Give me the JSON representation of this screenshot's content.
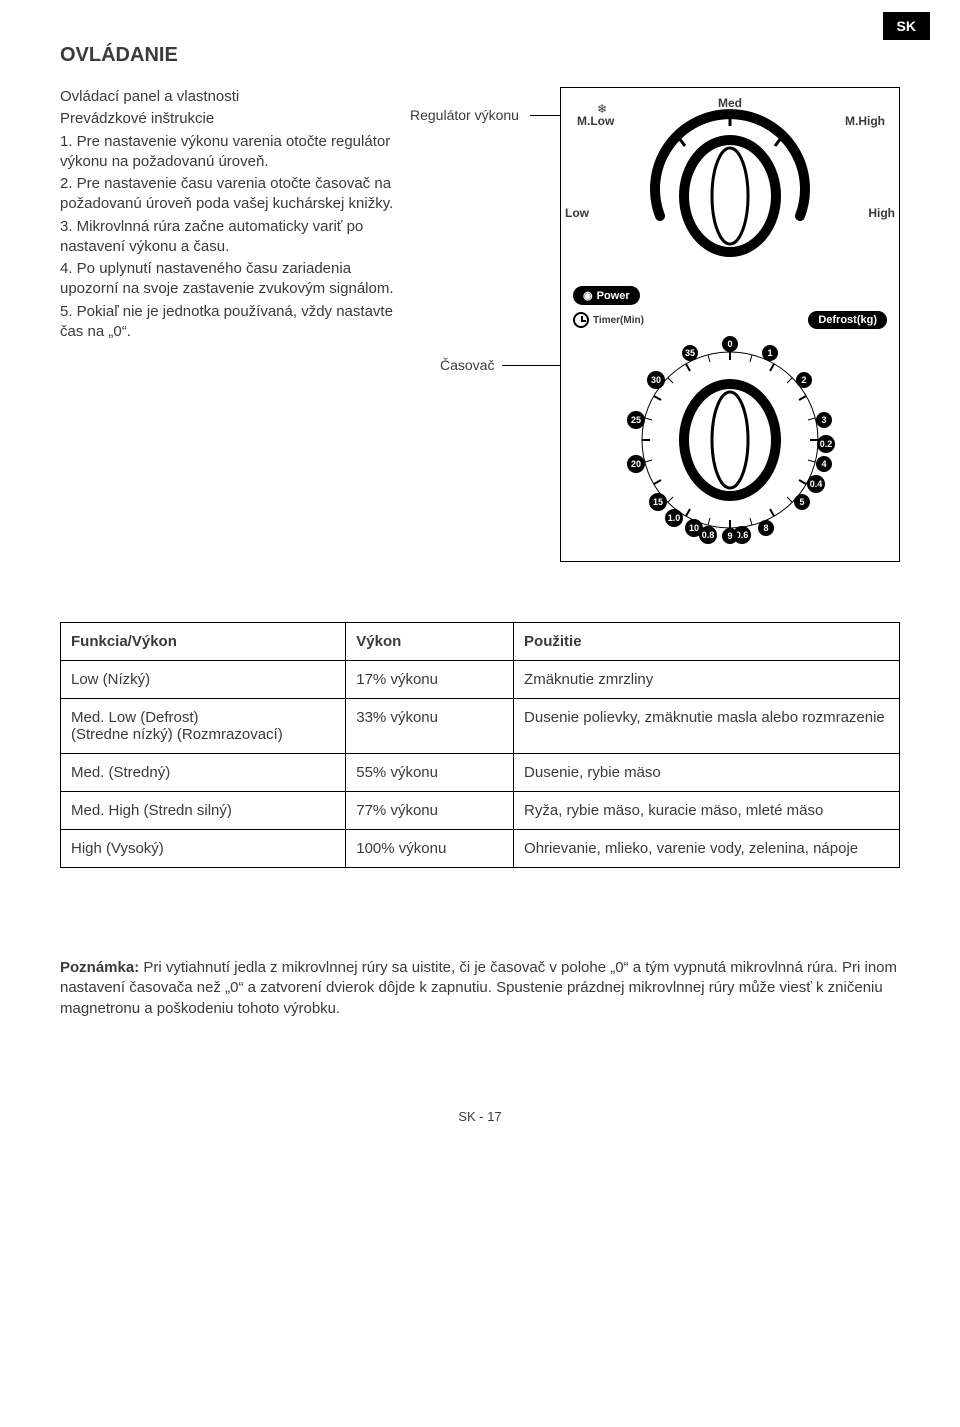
{
  "lang_tab": "SK",
  "title": "OVLÁDANIE",
  "subheading": "Ovládací panel a vlastnosti",
  "instr_heading": "Prevádzkové inštrukcie",
  "instructions": [
    "1. Pre nastavenie výkonu varenia otočte regulátor výkonu na požadovanú úroveň.",
    "2. Pre nastavenie času varenia otočte časovač na požadovanú úroveň poda vašej kuchárskej knižky.",
    "3. Mikrovlnná rúra začne automaticky variť po nastavení výkonu a času.",
    "4. Po uplynutí nastaveného času zariadenia upozorní na svoje zastavenie zvukovým signálom.",
    "5. Pokiaľ nie je jednotka používaná, vždy nastavte čas na „0“."
  ],
  "callout_power": "Regulátor výkonu",
  "callout_timer": "Časovač",
  "power_dial": {
    "labels": {
      "top": "Med",
      "topleft": "M.Low",
      "topright": "M.High",
      "left": "Low",
      "right": "High"
    }
  },
  "mid_row": {
    "power_pill": "Power",
    "defrost_pill": "Defrost(kg)",
    "timer_label": "Timer(Min)"
  },
  "timer_dial": {
    "outer": [
      "0",
      "1",
      "2",
      "3",
      "4",
      "5",
      "35",
      "30",
      "25",
      "20",
      "15",
      "10"
    ],
    "inner_bottom": [
      "1.0",
      "0.8",
      "0.6",
      "0.4",
      "0.2"
    ],
    "inner_top_alt": [
      "9",
      "8"
    ]
  },
  "table": {
    "headers": [
      "Funkcia/Výkon",
      "Výkon",
      "Použitie"
    ],
    "rows": [
      [
        "Low (Nízký)",
        "17% výkonu",
        "Zmäknutie zmrzliny"
      ],
      [
        "Med. Low (Defrost)\n(Stredne nízký) (Rozmrazovací)",
        "33% výkonu",
        "Dusenie polievky, zmäknutie masla alebo rozmrazenie"
      ],
      [
        "Med. (Stredný)",
        "55% výkonu",
        "Dusenie, rybie mäso"
      ],
      [
        "Med. High (Stredn silný)",
        "77% výkonu",
        "Ryža, rybie mäso, kuracie mäso, mleté mäso"
      ],
      [
        "High (Vysoký)",
        "100% výkonu",
        "Ohrievanie, mlieko, varenie vody, zelenina, nápoje"
      ]
    ]
  },
  "note_label": "Poznámka:",
  "note_text": " Pri vytiahnutí jedla z mikrovlnnej rúry sa uistite, či je časovač v polohe „0“ a tým vypnutá mikrovlnná rúra. Pri inom nastavení časovača než „0“ a zatvorení dvierok dôjde k zapnutiu. Spustenie prázdnej mikrovlnnej rúry může viesť k zničeniu magnetronu a poškodeniu tohoto výrobku.",
  "footer": "SK - 17"
}
